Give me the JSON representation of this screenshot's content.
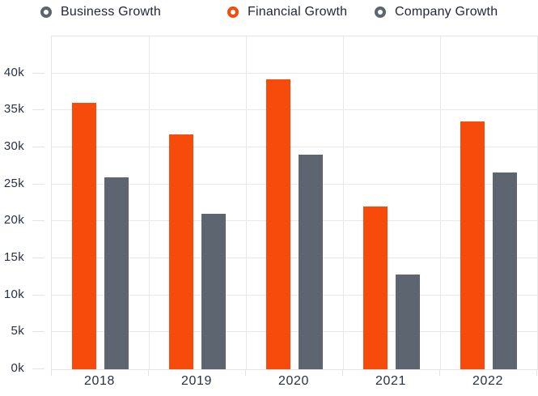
{
  "legend": {
    "items": [
      {
        "label": "Business Growth",
        "color": "#5D6670"
      },
      {
        "label": "Financial Growth",
        "color": "#F74B0C"
      },
      {
        "label": "Company Growth",
        "color": "#5D6670"
      }
    ]
  },
  "chart_data": {
    "type": "bar",
    "title": "",
    "xlabel": "",
    "ylabel": "",
    "categories": [
      "2018",
      "2019",
      "2020",
      "2021",
      "2022"
    ],
    "series": [
      {
        "name": "Financial Growth",
        "color": "#F74B0C",
        "values": [
          36000,
          31800,
          39200,
          22000,
          33500
        ]
      },
      {
        "name": "Company Growth",
        "color": "#5D6670",
        "values": [
          26000,
          21000,
          29000,
          12800,
          26600
        ]
      }
    ],
    "y_tick_labels": [
      "0k",
      "5k",
      "10k",
      "15k",
      "20k",
      "25k",
      "30k",
      "35k",
      "40k"
    ],
    "y_tick_values": [
      0,
      5000,
      10000,
      15000,
      20000,
      25000,
      30000,
      35000,
      40000
    ],
    "ylim": [
      0,
      45000
    ],
    "grid": true,
    "legend_position": "top"
  },
  "colors": {
    "accent_orange": "#F74B0C",
    "slate_gray": "#5D6670",
    "text": "#23263C",
    "axis_text": "#2A3045",
    "gridline": "#E8E8E8",
    "background": "#FFFFFF"
  }
}
